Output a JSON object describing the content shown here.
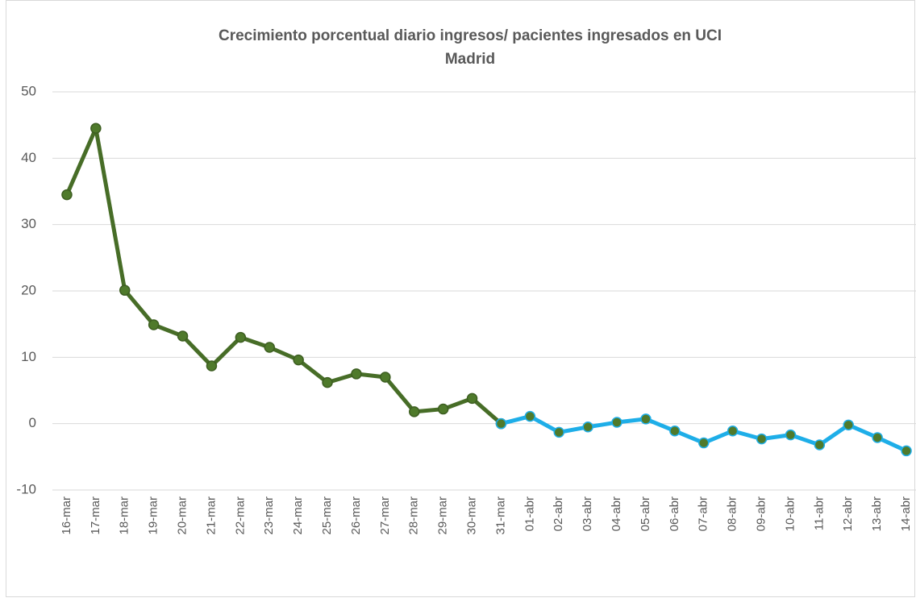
{
  "chart_data": {
    "type": "line",
    "title": [
      "Crecimiento porcentual diario ingresos/ pacientes ingresados en UCI",
      "Madrid"
    ],
    "categories": [
      "16-mar",
      "17-mar",
      "18-mar",
      "19-mar",
      "20-mar",
      "21-mar",
      "22-mar",
      "23-mar",
      "24-mar",
      "25-mar",
      "26-mar",
      "27-mar",
      "28-mar",
      "29-mar",
      "30-mar",
      "31-mar",
      "01-abr",
      "02-abr",
      "03-abr",
      "04-abr",
      "05-abr",
      "06-abr",
      "07-abr",
      "08-abr",
      "09-abr",
      "10-abr",
      "11-abr",
      "12-abr",
      "13-abr",
      "14-abr"
    ],
    "series": [
      {
        "color": "#476d27",
        "marker_color": "#4f7a2b",
        "marker_edge": "#3d5e21",
        "values": [
          34.5,
          44.5,
          20.1,
          14.9,
          13.2,
          8.7,
          13.0,
          11.5,
          9.6,
          6.2,
          7.5,
          7.0,
          1.8,
          2.2,
          3.8,
          0.0,
          null,
          null,
          null,
          null,
          null,
          null,
          null,
          null,
          null,
          null,
          null,
          null,
          null,
          null
        ]
      },
      {
        "color": "#1eaee8",
        "marker_color": "#4f7a2b",
        "marker_edge": "#1eaee8",
        "values": [
          null,
          null,
          null,
          null,
          null,
          null,
          null,
          null,
          null,
          null,
          null,
          null,
          null,
          null,
          null,
          0.0,
          1.1,
          -1.3,
          -0.5,
          0.2,
          0.7,
          -1.1,
          -2.9,
          -1.1,
          -2.3,
          -1.7,
          -3.2,
          -0.2,
          -2.1,
          -4.1
        ]
      }
    ],
    "ylim": [
      -10,
      50
    ],
    "yticks": [
      -10,
      0,
      10,
      20,
      30,
      40,
      50
    ],
    "grid": true
  }
}
